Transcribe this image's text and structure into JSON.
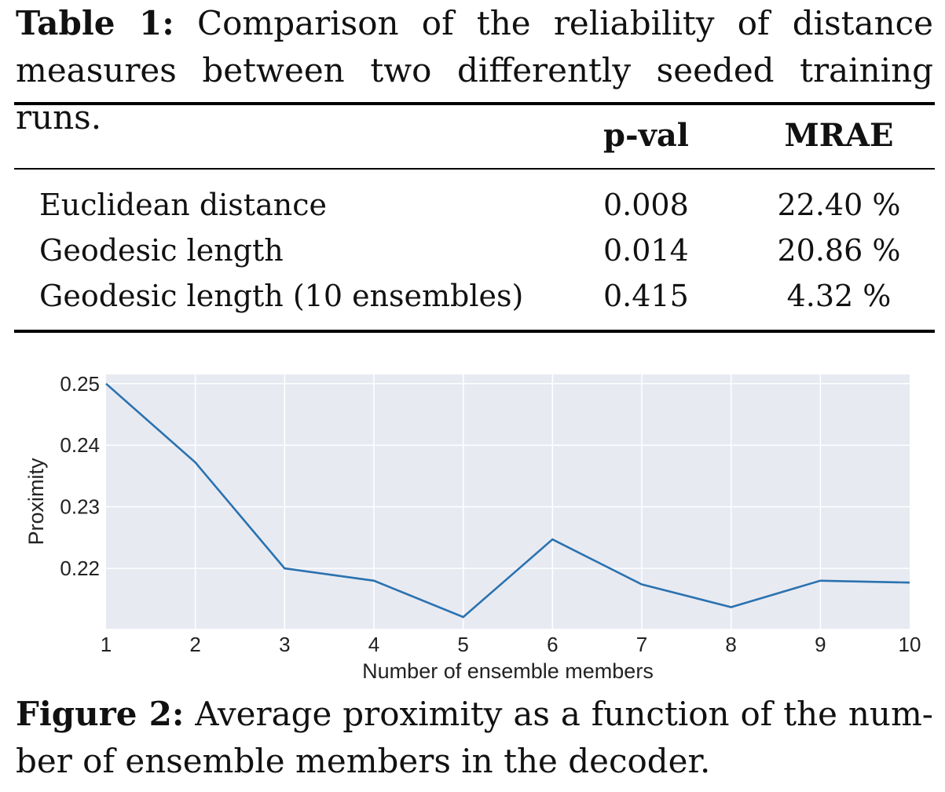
{
  "table": {
    "caption_label": "Table 1:",
    "caption_line1_rest": " Comparison of the reliability of distance",
    "caption_line2": "measures between two differently seeded training runs.",
    "headers": [
      "",
      "p-val",
      "MRAE"
    ],
    "rows": [
      {
        "label": "Euclidean distance",
        "p_val": "0.008",
        "mrae": "22.40 %"
      },
      {
        "label": "Geodesic length",
        "p_val": "0.014",
        "mrae": "20.86 %"
      },
      {
        "label": "Geodesic length (10 ensembles)",
        "p_val": "0.415",
        "mrae": "4.32 %"
      }
    ]
  },
  "figure": {
    "caption_label": "Figure 2:",
    "caption_line1_rest": " Average proximity as a function of the num-",
    "caption_line2": "ber of ensemble members in the decoder."
  },
  "chart_data": {
    "type": "line",
    "title": "",
    "xlabel": "Number of ensemble members",
    "ylabel": "Proximity",
    "x": [
      1,
      2,
      3,
      4,
      5,
      6,
      7,
      8,
      9,
      10
    ],
    "series": [
      {
        "values": [
          0.25,
          0.2372,
          0.22,
          0.218,
          0.2121,
          0.2247,
          0.2174,
          0.2137,
          0.218,
          0.2177
        ]
      }
    ],
    "xlim": [
      1,
      10
    ],
    "ylim": [
      0.2102,
      0.2515
    ],
    "yticks": [
      "0.25",
      "0.24",
      "0.23",
      "0.22"
    ],
    "xticks": [
      "1",
      "2",
      "3",
      "4",
      "5",
      "6",
      "7",
      "8",
      "9",
      "10"
    ],
    "grid": true,
    "colors": {
      "line": "#2a72b0",
      "background": "#e8eaf2",
      "grid": "#ffffff"
    }
  }
}
